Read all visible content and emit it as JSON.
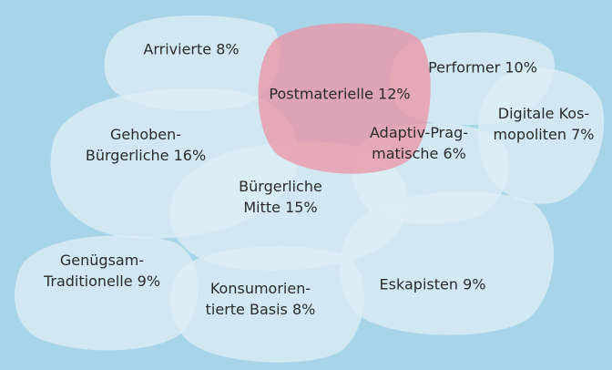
{
  "nodes": [
    {
      "lines": [
        "Arrivierte 8%"
      ]
    },
    {
      "lines": [
        "Postmaterielle 12%"
      ]
    },
    {
      "lines": [
        "Performer 10%"
      ]
    },
    {
      "lines": [
        "Digitale Kos-",
        "mopoliten 7%"
      ]
    },
    {
      "lines": [
        "Gehoben-",
        "Bürgerliche 16%"
      ]
    },
    {
      "lines": [
        "Adaptiv-Prag-",
        "matische 6%"
      ]
    },
    {
      "lines": [
        "Bürgerliche",
        "Mitte 15%"
      ]
    },
    {
      "lines": [
        "Genügsam-",
        "Traditionelle 9%"
      ]
    },
    {
      "lines": [
        "Eskapisten 9%"
      ]
    },
    {
      "lines": [
        "Konsumorien-",
        "tierte Basis 8%"
      ]
    }
  ]
}
